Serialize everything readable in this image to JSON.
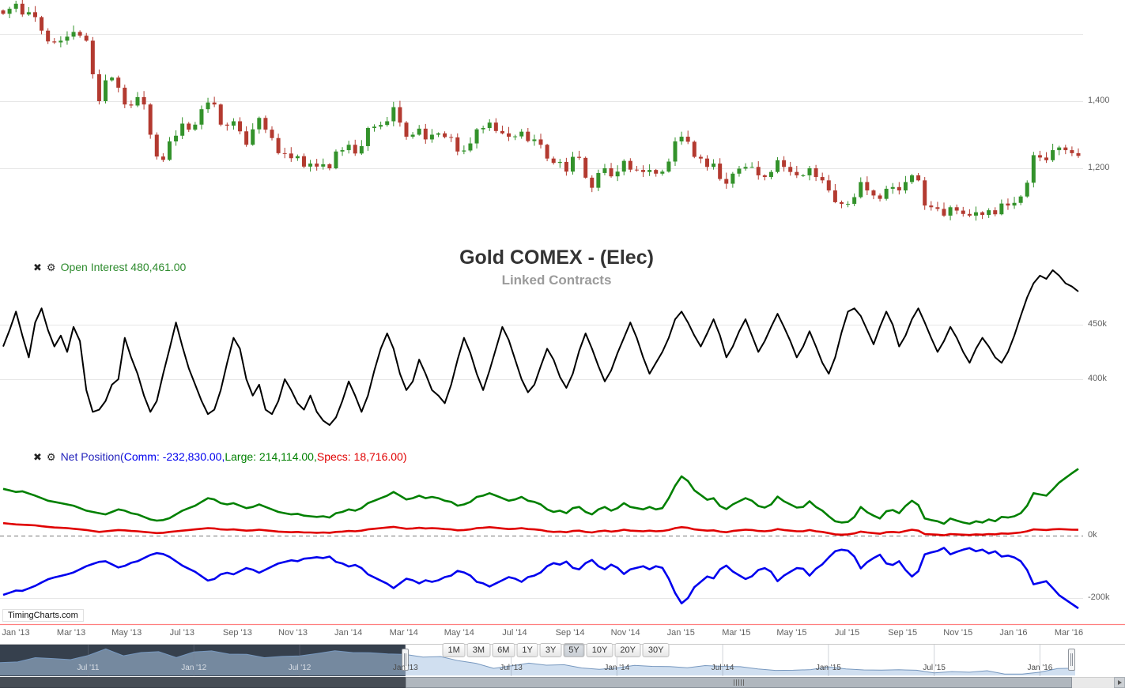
{
  "title": "Gold COMEX - (Elec)",
  "subtitle": "Linked Contracts",
  "watermark": "TimingCharts.com",
  "icons": {
    "close": "✖",
    "settings": "⚙"
  },
  "labels": {
    "open_interest": "Open Interest 480,461.00",
    "net_prefix": "Net Position(",
    "net_comm": "Comm: -232,830.00,",
    "net_large": "Large: 214,114.00,",
    "net_specs": "Specs: 18,716.00)"
  },
  "colors": {
    "candle_up": "#33922b",
    "candle_down": "#b33a30",
    "open_interest": "#000000",
    "comm": "#0000ee",
    "large": "#008000",
    "specs": "#e00000",
    "grid": "#e7e7e7",
    "axis_text": "#606060",
    "axis_red": "#ff7f7f",
    "nav_dark_mask": "#36404d",
    "nav_line": "#7798bf"
  },
  "x_axis": {
    "ticks": [
      "Jan '13",
      "Mar '13",
      "May '13",
      "Jul '13",
      "Sep '13",
      "Nov '13",
      "Jan '14",
      "Mar '14",
      "May '14",
      "Jul '14",
      "Sep '14",
      "Nov '14",
      "Jan '15",
      "Mar '15",
      "May '15",
      "Jul '15",
      "Sep '15",
      "Nov '15",
      "Jan '16",
      "Mar '16"
    ]
  },
  "navigator_ticks": [
    {
      "label": "Jul '11",
      "index": 5
    },
    {
      "label": "Jan '12",
      "index": 11
    },
    {
      "label": "Jul '12",
      "index": 17
    },
    {
      "label": "Jan '13",
      "index": 23
    },
    {
      "label": "Jul '13",
      "index": 29
    },
    {
      "label": "Jan '14",
      "index": 35
    },
    {
      "label": "Jul '14",
      "index": 41
    },
    {
      "label": "Jan '15",
      "index": 47
    },
    {
      "label": "Jul '15",
      "index": 53
    },
    {
      "label": "Jan '16",
      "index": 59
    }
  ],
  "range_selector": {
    "buttons": [
      "1M",
      "3M",
      "6M",
      "1Y",
      "3Y",
      "5Y",
      "10Y",
      "20Y",
      "30Y"
    ],
    "selected": "5Y"
  },
  "chart_data": [
    {
      "type": "candlestick",
      "name": "Gold COMEX price (Elec), linked contracts",
      "x_unit": "weekly",
      "x_range": "Jan 2013 - Mar 2016",
      "ylim": [
        970,
        1690
      ],
      "yticks": [
        {
          "label": "1,400",
          "value": 1400
        },
        {
          "label": "1,200",
          "value": 1200
        }
      ],
      "close": [
        1660,
        1675,
        1690,
        1658,
        1665,
        1650,
        1610,
        1578,
        1575,
        1580,
        1592,
        1606,
        1595,
        1580,
        1480,
        1400,
        1462,
        1470,
        1440,
        1390,
        1387,
        1412,
        1390,
        1300,
        1235,
        1225,
        1280,
        1297,
        1333,
        1315,
        1330,
        1376,
        1396,
        1390,
        1330,
        1327,
        1340,
        1310,
        1270,
        1316,
        1350,
        1315,
        1290,
        1245,
        1244,
        1230,
        1236,
        1205,
        1214,
        1205,
        1212,
        1200,
        1250,
        1254,
        1270,
        1244,
        1266,
        1320,
        1324,
        1329,
        1340,
        1382,
        1336,
        1294,
        1300,
        1318,
        1286,
        1300,
        1304,
        1293,
        1292,
        1250,
        1253,
        1274,
        1316,
        1320,
        1336,
        1311,
        1304,
        1294,
        1295,
        1309,
        1281,
        1286,
        1270,
        1229,
        1216,
        1219,
        1190,
        1234,
        1231,
        1172,
        1142,
        1186,
        1200,
        1176,
        1190,
        1222,
        1196,
        1195,
        1189,
        1195,
        1184,
        1190,
        1220,
        1280,
        1294,
        1279,
        1234,
        1229,
        1204,
        1214,
        1168,
        1154,
        1184,
        1199,
        1204,
        1204,
        1179,
        1174,
        1189,
        1224,
        1204,
        1189,
        1179,
        1179,
        1200,
        1174,
        1164,
        1134,
        1099,
        1094,
        1094,
        1114,
        1159,
        1134,
        1119,
        1109,
        1139,
        1144,
        1134,
        1159,
        1179,
        1164,
        1089,
        1084,
        1079,
        1059,
        1084,
        1074,
        1064,
        1059,
        1069,
        1061,
        1075,
        1063,
        1095,
        1089,
        1097,
        1116,
        1157,
        1239,
        1232,
        1224,
        1254,
        1262,
        1254,
        1245,
        1237
      ]
    },
    {
      "type": "line",
      "name": "Open Interest",
      "last_value_label": "480,461.00",
      "unit": "thousand contracts (k)",
      "x_unit": "weekly",
      "x_range": "Jan 2013 - Mar 2016",
      "ylim": [
        350,
        525
      ],
      "yticks": [
        {
          "label": "450k",
          "value": 450
        },
        {
          "label": "400k",
          "value": 400
        }
      ],
      "values": [
        430,
        445,
        462,
        440,
        420,
        452,
        465,
        445,
        430,
        440,
        425,
        448,
        435,
        390,
        370,
        372,
        380,
        395,
        400,
        438,
        420,
        405,
        385,
        370,
        380,
        405,
        428,
        452,
        430,
        410,
        395,
        380,
        368,
        372,
        390,
        415,
        438,
        428,
        400,
        385,
        395,
        372,
        368,
        380,
        400,
        390,
        378,
        372,
        385,
        370,
        362,
        358,
        365,
        380,
        398,
        385,
        370,
        385,
        408,
        428,
        442,
        428,
        405,
        390,
        398,
        418,
        405,
        390,
        385,
        378,
        395,
        418,
        438,
        424,
        405,
        390,
        408,
        428,
        448,
        436,
        418,
        400,
        388,
        395,
        412,
        428,
        418,
        402,
        392,
        405,
        426,
        442,
        428,
        412,
        398,
        408,
        424,
        438,
        452,
        438,
        420,
        405,
        415,
        425,
        438,
        455,
        462,
        452,
        440,
        430,
        442,
        455,
        440,
        420,
        430,
        444,
        455,
        440,
        425,
        435,
        448,
        460,
        448,
        435,
        420,
        430,
        444,
        430,
        415,
        405,
        420,
        443,
        462,
        465,
        458,
        445,
        432,
        448,
        462,
        450,
        430,
        440,
        455,
        465,
        452,
        438,
        425,
        435,
        448,
        438,
        425,
        415,
        428,
        438,
        430,
        420,
        415,
        425,
        440,
        458,
        475,
        488,
        495,
        492,
        500,
        495,
        488,
        485,
        480.461
      ]
    },
    {
      "type": "line",
      "name": "Net Position",
      "unit": "thousand contracts (k)",
      "x_unit": "weekly",
      "x_range": "Jan 2013 - Mar 2016",
      "ylim": [
        -260,
        230
      ],
      "yticks": [
        {
          "label": "0k",
          "value": 0
        },
        {
          "label": "-200k",
          "value": -200
        }
      ],
      "zero_line": "dashed",
      "series": [
        {
          "name": "Comm",
          "color_key": "comm",
          "last_value_label": "-232,830.00",
          "values": [
            -190,
            -183,
            -176,
            -177,
            -169,
            -161,
            -150,
            -140,
            -134,
            -129,
            -124,
            -118,
            -108,
            -98,
            -91,
            -84,
            -82,
            -92,
            -102,
            -97,
            -87,
            -82,
            -72,
            -62,
            -56,
            -59,
            -68,
            -82,
            -96,
            -106,
            -116,
            -130,
            -144,
            -139,
            -124,
            -119,
            -124,
            -114,
            -104,
            -109,
            -119,
            -109,
            -99,
            -89,
            -84,
            -79,
            -82,
            -74,
            -72,
            -69,
            -72,
            -67,
            -84,
            -89,
            -99,
            -94,
            -104,
            -124,
            -134,
            -144,
            -154,
            -168,
            -153,
            -138,
            -143,
            -153,
            -143,
            -148,
            -143,
            -133,
            -128,
            -113,
            -118,
            -128,
            -148,
            -153,
            -163,
            -153,
            -143,
            -133,
            -138,
            -148,
            -133,
            -128,
            -118,
            -98,
            -88,
            -93,
            -83,
            -103,
            -108,
            -88,
            -78,
            -98,
            -108,
            -93,
            -103,
            -123,
            -108,
            -103,
            -98,
            -108,
            -98,
            -103,
            -138,
            -184,
            -217,
            -200,
            -165,
            -148,
            -131,
            -137,
            -108,
            -96,
            -115,
            -127,
            -139,
            -130,
            -110,
            -104,
            -116,
            -146,
            -128,
            -116,
            -104,
            -106,
            -128,
            -106,
            -92,
            -70,
            -50,
            -45,
            -48,
            -67,
            -105,
            -85,
            -72,
            -61,
            -89,
            -94,
            -82,
            -110,
            -131,
            -114,
            -60,
            -54,
            -49,
            -39,
            -60,
            -52,
            -45,
            -40,
            -50,
            -45,
            -57,
            -50,
            -67,
            -64,
            -70,
            -82,
            -110,
            -156,
            -151,
            -146,
            -168,
            -191,
            -205,
            -219,
            -232.83
          ]
        },
        {
          "name": "Large",
          "color_key": "large",
          "last_value_label": "214,114.00",
          "values": [
            150,
            145,
            140,
            142,
            135,
            128,
            120,
            112,
            108,
            104,
            100,
            96,
            88,
            80,
            76,
            72,
            68,
            76,
            84,
            80,
            72,
            68,
            60,
            52,
            48,
            50,
            56,
            68,
            80,
            88,
            96,
            108,
            120,
            116,
            104,
            100,
            104,
            96,
            88,
            92,
            100,
            92,
            84,
            76,
            72,
            68,
            70,
            64,
            62,
            60,
            62,
            58,
            72,
            76,
            84,
            80,
            88,
            104,
            112,
            120,
            128,
            140,
            128,
            116,
            120,
            128,
            120,
            124,
            120,
            112,
            108,
            96,
            100,
            108,
            124,
            128,
            136,
            128,
            120,
            112,
            116,
            124,
            112,
            108,
            100,
            84,
            76,
            80,
            72,
            88,
            92,
            76,
            68,
            84,
            92,
            80,
            88,
            104,
            92,
            88,
            84,
            92,
            84,
            88,
            120,
            160,
            190,
            175,
            145,
            130,
            115,
            120,
            95,
            85,
            100,
            110,
            120,
            112,
            95,
            90,
            100,
            125,
            110,
            100,
            90,
            92,
            110,
            92,
            80,
            62,
            46,
            42,
            44,
            60,
            92,
            75,
            64,
            55,
            78,
            82,
            72,
            95,
            112,
            98,
            55,
            50,
            46,
            38,
            55,
            48,
            42,
            38,
            46,
            42,
            52,
            46,
            60,
            58,
            62,
            72,
            96,
            136,
            132,
            128,
            148,
            170,
            185,
            200,
            214.114
          ]
        },
        {
          "name": "Specs",
          "color_key": "specs",
          "last_value_label": "18,716.00",
          "values": [
            40,
            38,
            36,
            35,
            34,
            33,
            30,
            28,
            26,
            25,
            24,
            22,
            20,
            18,
            15,
            12,
            14,
            16,
            18,
            17,
            15,
            14,
            12,
            10,
            8,
            9,
            12,
            14,
            16,
            18,
            20,
            22,
            24,
            23,
            20,
            19,
            20,
            18,
            16,
            17,
            19,
            17,
            15,
            13,
            12,
            11,
            12,
            10,
            10,
            9,
            10,
            9,
            12,
            13,
            15,
            14,
            16,
            20,
            22,
            24,
            26,
            28,
            25,
            22,
            23,
            25,
            23,
            24,
            23,
            21,
            20,
            17,
            18,
            20,
            24,
            25,
            27,
            25,
            23,
            21,
            22,
            24,
            21,
            20,
            18,
            14,
            12,
            13,
            11,
            15,
            16,
            12,
            10,
            14,
            16,
            13,
            15,
            19,
            16,
            15,
            14,
            16,
            14,
            15,
            18,
            24,
            27,
            25,
            20,
            18,
            16,
            17,
            13,
            11,
            15,
            17,
            19,
            18,
            15,
            14,
            16,
            21,
            18,
            16,
            14,
            14,
            18,
            14,
            12,
            8,
            4,
            3,
            4,
            7,
            13,
            10,
            8,
            6,
            11,
            12,
            10,
            15,
            19,
            16,
            5,
            4,
            3,
            1,
            5,
            4,
            3,
            2,
            4,
            3,
            5,
            4,
            7,
            6,
            8,
            10,
            14,
            20,
            19,
            18,
            20,
            21,
            20,
            19,
            18.716
          ]
        }
      ]
    },
    {
      "type": "area",
      "name": "navigator (gold price overview)",
      "x_unit": "monthly",
      "x_range": "Feb 2011 - Mar 2016",
      "selected_window": "Jan 2013 - Mar 2016",
      "ylim": [
        1040,
        1840
      ],
      "values": [
        1410,
        1430,
        1560,
        1535,
        1500,
        1630,
        1830,
        1620,
        1720,
        1745,
        1565,
        1735,
        1770,
        1670,
        1665,
        1560,
        1600,
        1615,
        1690,
        1775,
        1720,
        1715,
        1675,
        1660,
        1580,
        1595,
        1470,
        1390,
        1235,
        1310,
        1395,
        1330,
        1345,
        1245,
        1205,
        1245,
        1325,
        1295,
        1290,
        1250,
        1320,
        1295,
        1285,
        1215,
        1170,
        1175,
        1195,
        1280,
        1215,
        1185,
        1180,
        1190,
        1175,
        1095,
        1135,
        1115,
        1160,
        1060,
        1060,
        1115,
        1230,
        1240
      ]
    }
  ]
}
